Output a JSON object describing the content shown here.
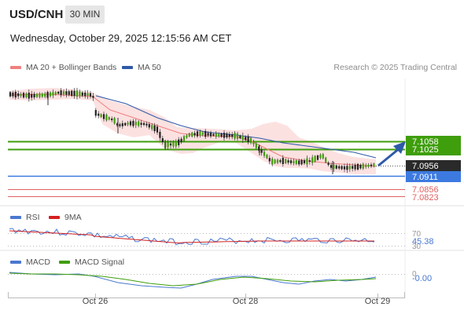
{
  "header": {
    "symbol": "USD/CNH",
    "timeframe": "30 MIN",
    "datetime": "Wednesday, October 29, 2025 12:15:56 AM CET"
  },
  "legend": {
    "items": [
      {
        "label": "MA 20 + Bollinger Bands",
        "color": "#f08080"
      },
      {
        "label": "MA 50",
        "color": "#2e5aa8"
      }
    ],
    "copyright": "Research © 2025 Trading Central"
  },
  "price_panel": {
    "levels": [
      {
        "value": "7.1058",
        "color": "#3f9e0c",
        "kind": "resistance"
      },
      {
        "value": "7.1025",
        "color": "#3f9e0c",
        "kind": "resistance"
      },
      {
        "value": "7.0956",
        "color": "#2a2a2a",
        "kind": "last-price"
      },
      {
        "value": "7.0911",
        "color": "#3d7ae0",
        "kind": "pivot"
      },
      {
        "value": "7.0856",
        "color": "#e06060",
        "kind": "support"
      },
      {
        "value": "7.0823",
        "color": "#e06060",
        "kind": "support"
      }
    ],
    "forecast_arrow": {
      "direction": "up",
      "color": "#2e5aa8"
    }
  },
  "rsi_panel": {
    "legend": [
      {
        "label": "RSI",
        "color": "#4a78d0"
      },
      {
        "label": "9MA",
        "color": "#d42020"
      }
    ],
    "tick_labels": [
      "70",
      "30"
    ],
    "value": "45.38"
  },
  "macd_panel": {
    "legend": [
      {
        "label": "MACD",
        "color": "#4a78d0"
      },
      {
        "label": "MACD Signal",
        "color": "#3f9e0c"
      }
    ],
    "tick_labels": [
      "0"
    ],
    "value": "-0.00"
  },
  "x_axis": {
    "labels": [
      "Oct 26",
      "Oct 28",
      "Oct 29"
    ]
  }
}
